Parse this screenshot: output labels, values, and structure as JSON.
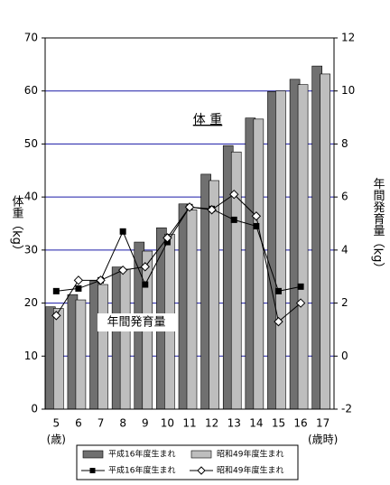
{
  "chart_data": {
    "type": "combo",
    "annotations": [
      "体 重",
      "年間発育量"
    ],
    "y_label": "体重（kg）",
    "y2_label": "年間発育量（kg）",
    "x_unit_start": "(歳)",
    "x_unit_end": "(歳時)",
    "categories": [
      "5",
      "6",
      "7",
      "8",
      "9",
      "10",
      "11",
      "12",
      "13",
      "14",
      "15",
      "16",
      "17"
    ],
    "series": [
      {
        "name": "平成16年度生まれ",
        "kind": "bar",
        "color": "#707070",
        "values": [
          19.3,
          21.6,
          24.2,
          26.8,
          31.5,
          34.2,
          38.7,
          44.3,
          49.7,
          54.9,
          59.9,
          62.2,
          64.7
        ]
      },
      {
        "name": "昭和49年度生まれ",
        "kind": "bar",
        "color": "#bebebe",
        "values": [
          19.0,
          20.6,
          23.5,
          26.4,
          29.8,
          33.0,
          37.6,
          43.1,
          48.5,
          54.7,
          60.0,
          61.2,
          63.2
        ]
      },
      {
        "name": "平成16年度生まれ",
        "kind": "line",
        "axis": "y2",
        "marker": "square",
        "color": "#000000",
        "values": [
          2.45,
          2.55,
          2.86,
          4.7,
          2.7,
          4.3,
          5.62,
          5.55,
          5.14,
          4.9,
          2.45,
          2.62,
          null
        ]
      },
      {
        "name": "昭和49年度生まれ",
        "kind": "line",
        "axis": "y2",
        "marker": "diamond",
        "color": "#000000",
        "values": [
          1.53,
          2.86,
          2.86,
          3.24,
          3.37,
          4.46,
          5.62,
          5.52,
          6.1,
          5.28,
          1.3,
          2.0,
          null
        ]
      }
    ],
    "ylim": [
      0,
      70
    ],
    "yticks": [
      0,
      10,
      20,
      30,
      40,
      50,
      60,
      70
    ],
    "y2lim": [
      -2,
      12
    ],
    "y2ticks": [
      -2,
      0,
      2,
      4,
      6,
      8,
      10,
      12
    ],
    "grid": true,
    "grid_color": "#1a1aa6"
  }
}
